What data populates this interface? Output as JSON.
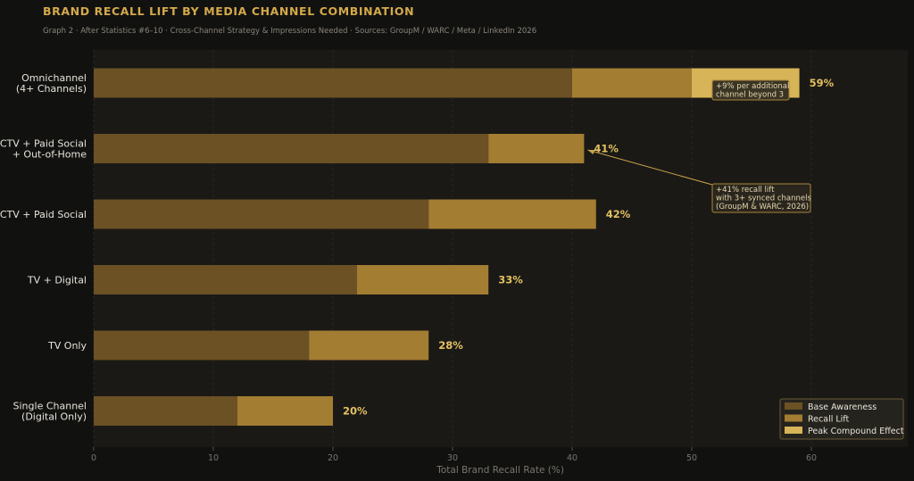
{
  "header": {
    "title": "BRAND RECALL LIFT BY MEDIA CHANNEL COMBINATION",
    "subtitle": "Graph 2  ·  After Statistics #6–10  ·  Cross-Channel Strategy & Impressions Needed  ·  Sources: GroupM / WARC / Meta / LinkedIn 2026"
  },
  "chart_data": {
    "type": "bar",
    "orientation": "horizontal",
    "stacked": true,
    "categories": [
      [
        "Omnichannel",
        "(4+ Channels)"
      ],
      [
        "CTV + Paid Social",
        "+ Out-of-Home"
      ],
      [
        "CTV + Paid Social"
      ],
      [
        "TV + Digital"
      ],
      [
        "TV Only"
      ],
      [
        "Single Channel",
        "(Digital Only)"
      ]
    ],
    "series": [
      {
        "name": "Base Awareness",
        "color": "#6b5124",
        "values": [
          40,
          33,
          28,
          22,
          18,
          12
        ]
      },
      {
        "name": "Recall Lift",
        "color": "#a37d32",
        "values": [
          10,
          8,
          14,
          11,
          10,
          8
        ]
      },
      {
        "name": "Peak Compound Effect",
        "color": "#d6b457",
        "values": [
          9,
          0,
          0,
          0,
          0,
          0
        ]
      }
    ],
    "total_labels": [
      "59%",
      "41%",
      "42%",
      "33%",
      "28%",
      "20%"
    ],
    "xlabel": "Total Brand Recall Rate (%)",
    "xlim": [
      0,
      68
    ],
    "xticks": [
      0,
      10,
      20,
      30,
      40,
      50,
      60
    ],
    "grid": true,
    "legend_position": "bottom-right",
    "annotations": [
      {
        "lines": [
          "+9% per additional",
          "channel beyond 3"
        ]
      },
      {
        "lines": [
          "+41% recall lift",
          "with 3+ synced channels",
          "(GroupM & WARC, 2026)"
        ]
      }
    ]
  }
}
